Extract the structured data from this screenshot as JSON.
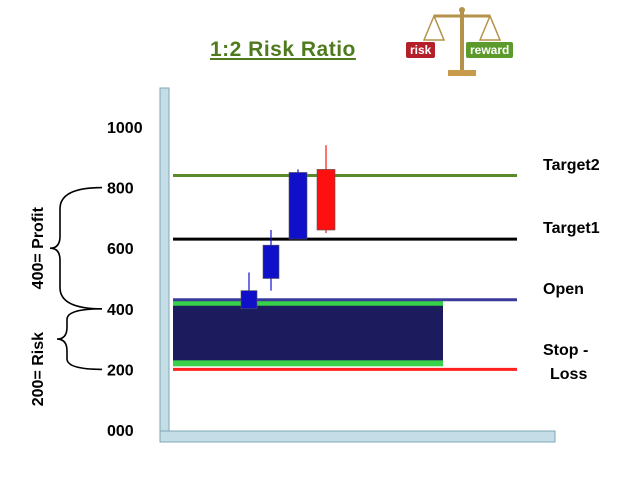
{
  "title": "1:2 Risk Ratio",
  "badges": {
    "risk": "risk",
    "reward": "reward"
  },
  "chart_data": {
    "type": "candlestick",
    "title": "1:2 Risk Ratio",
    "ylim": [
      0,
      1000
    ],
    "y_ticks": [
      "000",
      "200",
      "400",
      "600",
      "800",
      "1000"
    ],
    "y_tick_values": [
      0,
      200,
      400,
      600,
      800,
      1000
    ],
    "candles": [
      {
        "open": 400,
        "close": 460,
        "high": 520,
        "low": 400,
        "color": "#1010c8"
      },
      {
        "open": 500,
        "close": 610,
        "high": 660,
        "low": 460,
        "color": "#1010c8"
      },
      {
        "open": 630,
        "close": 850,
        "high": 860,
        "low": 630,
        "color": "#1010c8"
      },
      {
        "open": 860,
        "close": 660,
        "high": 940,
        "low": 650,
        "color": "#ff1010"
      }
    ],
    "levels": [
      {
        "label": "Target2",
        "value": 840,
        "color": "#5a8a2a"
      },
      {
        "label": "Target1",
        "value": 630,
        "color": "#000000"
      },
      {
        "label": "Open",
        "value": 430,
        "color": "#3a3a9a"
      },
      {
        "label": "Stop -\nLoss",
        "value": 200,
        "color": "#ff2020"
      }
    ],
    "risk_zone": {
      "from": 220,
      "to": 420,
      "fill": "#1b1b5e",
      "edge": "#37d24a"
    },
    "brace_labels": [
      {
        "text": "400= Profit",
        "from": 400,
        "to": 800
      },
      {
        "text": "200= Risk",
        "from": 200,
        "to": 400
      }
    ]
  }
}
